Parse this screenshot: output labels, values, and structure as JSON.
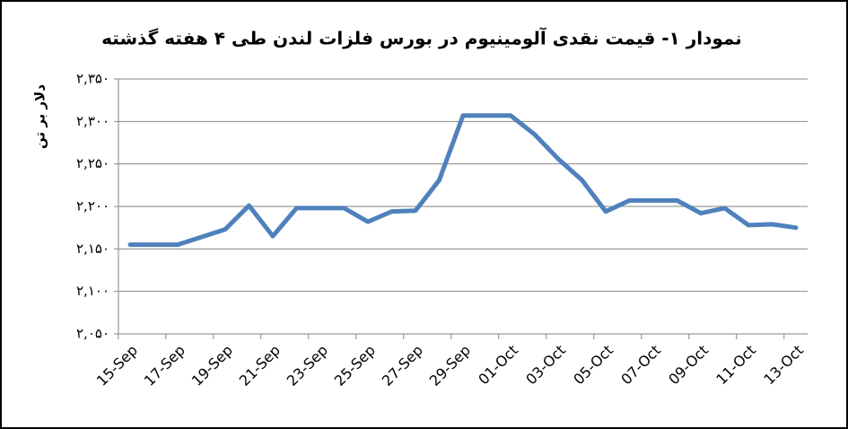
{
  "chart_data": {
    "type": "line",
    "title": "نمودار ۱- قیمت نقدی آلومینیوم در بورس فلزات لندن طی ۴ هفته گذشته",
    "y_label": "دلار بر تن",
    "categories": [
      "15-Sep",
      null,
      "17-Sep",
      null,
      "19-Sep",
      null,
      "21-Sep",
      null,
      "23-Sep",
      null,
      "25-Sep",
      null,
      "27-Sep",
      null,
      "29-Sep",
      null,
      "01-Oct",
      null,
      "03-Oct",
      null,
      "05-Oct",
      null,
      "07-Oct",
      null,
      "09-Oct",
      null,
      "11-Oct",
      null,
      "13-Oct"
    ],
    "values": [
      2155,
      2155,
      2155,
      2164,
      2173,
      2201,
      2165,
      2198,
      2198,
      2198,
      2182,
      2194,
      2195,
      2231,
      2307,
      2307,
      2307,
      2285,
      2256,
      2231,
      2194,
      2207,
      2207,
      2207,
      2192,
      2198,
      2178,
      2179,
      2175
    ],
    "color": "#4f81bd",
    "ylim": [
      2050,
      2350
    ],
    "yticks": [
      {
        "value": 2050,
        "label": "۲,۰۵۰"
      },
      {
        "value": 2100,
        "label": "۲,۱۰۰"
      },
      {
        "value": 2150,
        "label": "۲,۱۵۰"
      },
      {
        "value": 2200,
        "label": "۲,۲۰۰"
      },
      {
        "value": 2250,
        "label": "۲,۲۵۰"
      },
      {
        "value": 2300,
        "label": "۲,۳۰۰"
      },
      {
        "value": 2350,
        "label": "۲,۳۵۰"
      }
    ],
    "grid": true
  }
}
